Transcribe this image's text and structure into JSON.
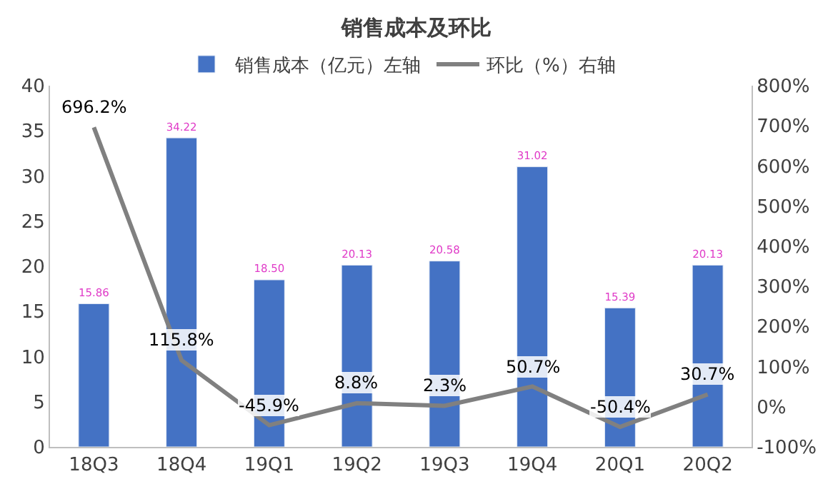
{
  "chart_data": {
    "type": "bar",
    "title": "销售成本及环比",
    "categories": [
      "18Q3",
      "18Q4",
      "19Q1",
      "19Q2",
      "19Q3",
      "19Q4",
      "20Q1",
      "20Q2"
    ],
    "series": [
      {
        "name": "销售成本（亿元）左轴",
        "color": "#4472c4",
        "values": [
          15.86,
          34.22,
          18.5,
          20.13,
          20.58,
          31.02,
          15.39,
          20.13
        ],
        "value_labels": [
          "15.86",
          "34.22",
          "18.50",
          "20.13",
          "20.58",
          "31.02",
          "15.39",
          "20.13"
        ]
      },
      {
        "name": "环比（%）右轴",
        "type": "line",
        "axis": "y2",
        "color": "#808080",
        "values": [
          696.2,
          115.8,
          -45.9,
          8.8,
          2.3,
          50.7,
          -50.4,
          30.7
        ],
        "value_labels": [
          "696.2%",
          "115.8%",
          "-45.9%",
          "8.8%",
          "2.3%",
          "50.7%",
          "-50.4%",
          "30.7%"
        ]
      }
    ],
    "ylim": [
      0,
      40
    ],
    "yticks": [
      0,
      5,
      10,
      15,
      20,
      25,
      30,
      35,
      40
    ],
    "y2lim": [
      -100,
      800
    ],
    "y2ticks": [
      {
        "value": -100,
        "label": "-100%"
      },
      {
        "value": 0,
        "label": "0%"
      },
      {
        "value": 100,
        "label": "100%"
      },
      {
        "value": 200,
        "label": "200%"
      },
      {
        "value": 300,
        "label": "300%"
      },
      {
        "value": 400,
        "label": "400%"
      },
      {
        "value": 500,
        "label": "500%"
      },
      {
        "value": 600,
        "label": "600%"
      },
      {
        "value": 700,
        "label": "700%"
      },
      {
        "value": 800,
        "label": "800%"
      }
    ],
    "legend": "top",
    "marker": "none",
    "line_style": "solid"
  }
}
